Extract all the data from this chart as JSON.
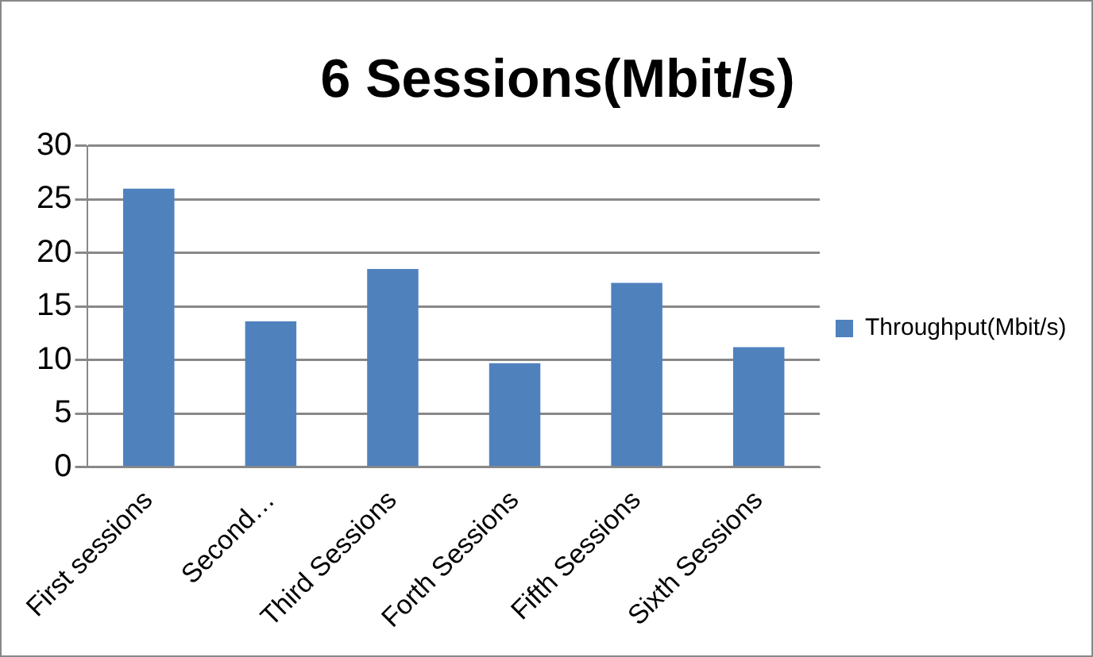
{
  "chart_data": {
    "type": "bar",
    "title": "6 Sessions(Mbit/s)",
    "categories": [
      "First sessions",
      "Second…",
      "Third Sessions",
      "Forth Sessions",
      "Fifth Sessions",
      "Sixth Sessions"
    ],
    "series": [
      {
        "name": "Throughput(Mbit/s)",
        "color": "#4f81bd",
        "values": [
          26.0,
          13.6,
          18.5,
          9.7,
          17.2,
          11.2
        ]
      }
    ],
    "ylim": [
      0,
      30
    ],
    "yticks": [
      0,
      5,
      10,
      15,
      20,
      25,
      30
    ],
    "grid": "y",
    "legend": "right"
  }
}
